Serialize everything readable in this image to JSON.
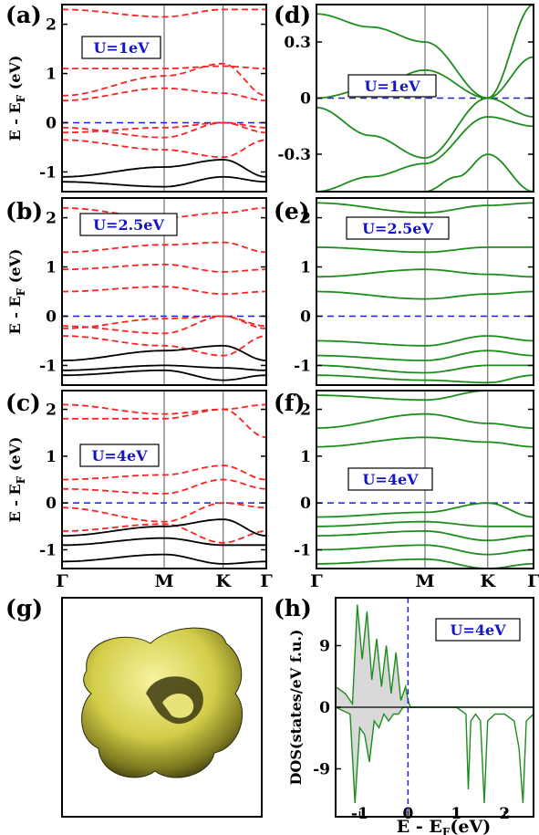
{
  "chart_data": [
    {
      "panel": "(a)",
      "type": "line",
      "U_label": "U=1eV",
      "ylabel": "E - E",
      "ylabel_sub": "F",
      "ylabel_unit": " (eV)",
      "ylim": [
        -1.4,
        2.4
      ],
      "yticks": [
        "-1",
        "0",
        "1",
        "2"
      ],
      "ytick_values": [
        -1,
        0,
        1,
        2
      ],
      "k_points": [
        "Γ",
        "M",
        "K",
        "Γ"
      ],
      "k_positions": [
        0,
        0.5,
        0.789,
        1
      ],
      "series": [
        {
          "style": "dashed",
          "color": "#ff2020",
          "x": [
            0,
            0.5,
            0.789,
            1
          ],
          "y": [
            0.55,
            0.95,
            1.2,
            0.55
          ]
        },
        {
          "style": "dashed",
          "color": "#ff2020",
          "x": [
            0,
            0.5,
            0.789,
            1
          ],
          "y": [
            0.45,
            0.7,
            0.6,
            0.45
          ]
        },
        {
          "style": "dashed",
          "color": "#ff2020",
          "x": [
            0,
            0.5,
            0.789,
            1
          ],
          "y": [
            -0.1,
            -0.3,
            0.0,
            -0.1
          ]
        },
        {
          "style": "dashed",
          "color": "#ff2020",
          "x": [
            0,
            0.5,
            0.789,
            1
          ],
          "y": [
            -0.2,
            -0.1,
            0.0,
            -0.2
          ]
        },
        {
          "style": "dashed",
          "color": "#ff2020",
          "x": [
            0,
            0.5,
            0.789,
            1
          ],
          "y": [
            1.1,
            1.1,
            1.15,
            1.1
          ]
        },
        {
          "style": "dashed",
          "color": "#ff2020",
          "x": [
            0,
            0.5,
            0.789,
            1
          ],
          "y": [
            2.3,
            2.15,
            2.3,
            2.3
          ]
        },
        {
          "style": "dashed",
          "color": "#ff2020",
          "x": [
            0,
            0.5,
            0.789,
            1
          ],
          "y": [
            -0.35,
            -0.55,
            -0.7,
            -0.35
          ]
        },
        {
          "style": "solid",
          "color": "#000000",
          "x": [
            0,
            0.5,
            0.789,
            1
          ],
          "y": [
            -1.1,
            -0.9,
            -0.75,
            -1.1
          ]
        },
        {
          "style": "solid",
          "color": "#000000",
          "x": [
            0,
            0.5,
            0.789,
            1
          ],
          "y": [
            -1.2,
            -1.3,
            -1.1,
            -1.2
          ]
        }
      ]
    },
    {
      "panel": "(b)",
      "type": "line",
      "U_label": "U=2.5eV",
      "ylabel": "E - E",
      "ylabel_sub": "F",
      "ylabel_unit": " (eV)",
      "ylim": [
        -1.4,
        2.4
      ],
      "yticks": [
        "-1",
        "0",
        "1",
        "2"
      ],
      "ytick_values": [
        -1,
        0,
        1,
        2
      ],
      "k_points": [
        "Γ",
        "M",
        "K",
        "Γ"
      ],
      "k_positions": [
        0,
        0.5,
        0.789,
        1
      ],
      "series": [
        {
          "style": "dashed",
          "color": "#ff2020",
          "x": [
            0,
            0.5,
            0.789,
            1
          ],
          "y": [
            2.2,
            2.0,
            2.1,
            2.2
          ]
        },
        {
          "style": "dashed",
          "color": "#ff2020",
          "x": [
            0,
            0.5,
            0.789,
            1
          ],
          "y": [
            1.3,
            1.45,
            1.5,
            1.3
          ]
        },
        {
          "style": "dashed",
          "color": "#ff2020",
          "x": [
            0,
            0.5,
            0.789,
            1
          ],
          "y": [
            0.95,
            1.05,
            0.9,
            0.95
          ]
        },
        {
          "style": "dashed",
          "color": "#ff2020",
          "x": [
            0,
            0.5,
            0.789,
            1
          ],
          "y": [
            0.5,
            0.6,
            0.45,
            0.5
          ]
        },
        {
          "style": "dashed",
          "color": "#ff2020",
          "x": [
            0,
            0.5,
            0.789,
            1
          ],
          "y": [
            -0.2,
            -0.35,
            0.0,
            -0.2
          ]
        },
        {
          "style": "dashed",
          "color": "#ff2020",
          "x": [
            0,
            0.5,
            0.789,
            1
          ],
          "y": [
            -0.25,
            -0.05,
            0.0,
            -0.25
          ]
        },
        {
          "style": "dashed",
          "color": "#ff2020",
          "x": [
            0,
            0.5,
            0.789,
            1
          ],
          "y": [
            -0.4,
            -0.6,
            -0.8,
            -0.4
          ]
        },
        {
          "style": "solid",
          "color": "#000000",
          "x": [
            0,
            0.5,
            0.789,
            1
          ],
          "y": [
            -0.9,
            -0.7,
            -0.6,
            -0.9
          ]
        },
        {
          "style": "solid",
          "color": "#000000",
          "x": [
            0,
            0.5,
            0.789,
            1
          ],
          "y": [
            -1.1,
            -1.0,
            -1.05,
            -1.1
          ]
        },
        {
          "style": "solid",
          "color": "#000000",
          "x": [
            0,
            0.5,
            0.789,
            1
          ],
          "y": [
            -1.2,
            -1.1,
            -1.3,
            -1.2
          ]
        }
      ]
    },
    {
      "panel": "(c)",
      "type": "line",
      "U_label": "U=4eV",
      "ylabel": "E - E",
      "ylabel_sub": "F",
      "ylabel_unit": " (eV)",
      "ylim": [
        -1.4,
        2.4
      ],
      "yticks": [
        "-1",
        "0",
        "1",
        "2"
      ],
      "ytick_values": [
        -1,
        0,
        1,
        2
      ],
      "k_points": [
        "Γ",
        "M",
        "K",
        "Γ"
      ],
      "k_positions": [
        0,
        0.5,
        0.789,
        1
      ],
      "series": [
        {
          "style": "dashed",
          "color": "#ff2020",
          "x": [
            0,
            0.5,
            0.789,
            1
          ],
          "y": [
            2.1,
            1.9,
            2.0,
            2.1
          ]
        },
        {
          "style": "dashed",
          "color": "#ff2020",
          "x": [
            0,
            0.5,
            0.789,
            1
          ],
          "y": [
            1.8,
            1.8,
            2.0,
            1.4
          ]
        },
        {
          "style": "dashed",
          "color": "#ff2020",
          "x": [
            0,
            0.5,
            0.789,
            1
          ],
          "y": [
            0.5,
            0.6,
            0.8,
            0.5
          ]
        },
        {
          "style": "dashed",
          "color": "#ff2020",
          "x": [
            0,
            0.5,
            0.789,
            1
          ],
          "y": [
            0.3,
            0.2,
            0.5,
            0.3
          ]
        },
        {
          "style": "dashed",
          "color": "#ff2020",
          "x": [
            0,
            0.5,
            0.789,
            1
          ],
          "y": [
            -0.1,
            -0.4,
            0.0,
            -0.1
          ]
        },
        {
          "style": "dashed",
          "color": "#ff2020",
          "x": [
            0,
            0.5,
            0.789,
            1
          ],
          "y": [
            -0.6,
            -0.45,
            -0.85,
            -0.6
          ]
        },
        {
          "style": "solid",
          "color": "#000000",
          "x": [
            0,
            0.5,
            0.789,
            1
          ],
          "y": [
            -0.7,
            -0.5,
            -0.35,
            -0.7
          ]
        },
        {
          "style": "solid",
          "color": "#000000",
          "x": [
            0,
            0.5,
            0.789,
            1
          ],
          "y": [
            -0.9,
            -0.75,
            -0.9,
            -0.9
          ]
        },
        {
          "style": "solid",
          "color": "#000000",
          "x": [
            0,
            0.5,
            0.789,
            1
          ],
          "y": [
            -1.25,
            -1.1,
            -1.3,
            -1.25
          ]
        }
      ]
    },
    {
      "panel": "(d)",
      "type": "line",
      "U_label": "U=1eV",
      "ylim": [
        -0.5,
        0.5
      ],
      "yticks": [
        "0.3",
        "0",
        "-0.3"
      ],
      "ytick_values": [
        0.3,
        0,
        -0.3
      ],
      "k_positions": [
        0,
        0.5,
        0.789,
        1
      ],
      "series": [
        {
          "style": "solid",
          "color": "#1e8c1e",
          "x": [
            0,
            0.25,
            0.5,
            0.789,
            1
          ],
          "y": [
            0.45,
            0.38,
            0.3,
            0.0,
            0.5
          ]
        },
        {
          "style": "solid",
          "color": "#1e8c1e",
          "x": [
            0,
            0.25,
            0.5,
            0.789,
            1
          ],
          "y": [
            0.0,
            0.05,
            0.15,
            0.0,
            0.22
          ]
        },
        {
          "style": "solid",
          "color": "#1e8c1e",
          "x": [
            0,
            0.25,
            0.5,
            0.789,
            1
          ],
          "y": [
            -0.05,
            -0.2,
            -0.32,
            0.0,
            -0.1
          ]
        },
        {
          "style": "solid",
          "color": "#1e8c1e",
          "x": [
            0,
            0.25,
            0.5,
            0.789,
            1
          ],
          "y": [
            -0.5,
            -0.42,
            -0.35,
            -0.1,
            -0.15
          ]
        },
        {
          "style": "solid",
          "color": "#1e8c1e",
          "x": [
            0.5,
            0.65,
            0.789,
            1
          ],
          "y": [
            -0.5,
            -0.42,
            -0.3,
            -0.5
          ]
        }
      ]
    },
    {
      "panel": "(e)",
      "type": "line",
      "U_label": "U=2.5eV",
      "ylim": [
        -1.4,
        2.4
      ],
      "yticks": [
        "-1",
        "0",
        "1",
        "2"
      ],
      "ytick_values": [
        -1,
        0,
        1,
        2
      ],
      "k_positions": [
        0,
        0.5,
        0.789,
        1
      ],
      "series": [
        {
          "style": "solid",
          "color": "#1e8c1e",
          "x": [
            0,
            0.5,
            0.789,
            1
          ],
          "y": [
            2.3,
            2.1,
            2.25,
            2.3
          ]
        },
        {
          "style": "solid",
          "color": "#1e8c1e",
          "x": [
            0,
            0.5,
            0.789,
            1
          ],
          "y": [
            1.4,
            1.3,
            1.4,
            1.4
          ]
        },
        {
          "style": "solid",
          "color": "#1e8c1e",
          "x": [
            0,
            0.5,
            0.789,
            1
          ],
          "y": [
            0.8,
            0.95,
            0.85,
            0.8
          ]
        },
        {
          "style": "solid",
          "color": "#1e8c1e",
          "x": [
            0,
            0.5,
            0.789,
            1
          ],
          "y": [
            0.5,
            0.35,
            0.45,
            0.5
          ]
        },
        {
          "style": "solid",
          "color": "#1e8c1e",
          "x": [
            0,
            0.5,
            0.789,
            1
          ],
          "y": [
            -0.5,
            -0.6,
            -0.4,
            -0.5
          ]
        },
        {
          "style": "solid",
          "color": "#1e8c1e",
          "x": [
            0,
            0.5,
            0.789,
            1
          ],
          "y": [
            -0.8,
            -0.9,
            -0.7,
            -0.8
          ]
        },
        {
          "style": "solid",
          "color": "#1e8c1e",
          "x": [
            0,
            0.5,
            0.789,
            1
          ],
          "y": [
            -1.0,
            -1.15,
            -1.0,
            -1.0
          ]
        },
        {
          "style": "solid",
          "color": "#1e8c1e",
          "x": [
            0,
            0.5,
            0.789,
            1
          ],
          "y": [
            -1.2,
            -1.3,
            -1.35,
            -1.2
          ]
        }
      ]
    },
    {
      "panel": "(f)",
      "type": "line",
      "U_label": "U=4eV",
      "ylim": [
        -1.4,
        2.4
      ],
      "yticks": [
        "-1",
        "0",
        "1",
        "2"
      ],
      "ytick_values": [
        -1,
        0,
        1,
        2
      ],
      "k_positions": [
        0,
        0.5,
        0.789,
        1
      ],
      "series": [
        {
          "style": "solid",
          "color": "#1e8c1e",
          "x": [
            0,
            0.5,
            0.789,
            1
          ],
          "y": [
            2.3,
            2.2,
            2.4,
            2.4
          ]
        },
        {
          "style": "solid",
          "color": "#1e8c1e",
          "x": [
            0,
            0.5,
            0.789,
            1
          ],
          "y": [
            1.6,
            1.9,
            1.7,
            1.6
          ]
        },
        {
          "style": "solid",
          "color": "#1e8c1e",
          "x": [
            0,
            0.5,
            0.789,
            1
          ],
          "y": [
            1.2,
            1.4,
            1.3,
            1.2
          ]
        },
        {
          "style": "solid",
          "color": "#1e8c1e",
          "x": [
            0,
            0.5,
            0.789,
            1
          ],
          "y": [
            -0.3,
            -0.2,
            0.0,
            -0.3
          ]
        },
        {
          "style": "solid",
          "color": "#1e8c1e",
          "x": [
            0,
            0.5,
            0.789,
            1
          ],
          "y": [
            -0.5,
            -0.4,
            -0.5,
            -0.5
          ]
        },
        {
          "style": "solid",
          "color": "#1e8c1e",
          "x": [
            0,
            0.5,
            0.789,
            1
          ],
          "y": [
            -0.7,
            -0.6,
            -0.8,
            -0.7
          ]
        },
        {
          "style": "solid",
          "color": "#1e8c1e",
          "x": [
            0,
            0.5,
            0.789,
            1
          ],
          "y": [
            -1.0,
            -0.9,
            -1.1,
            -1.0
          ]
        },
        {
          "style": "solid",
          "color": "#1e8c1e",
          "x": [
            0,
            0.5,
            0.789,
            1
          ],
          "y": [
            -1.3,
            -1.2,
            -1.4,
            -1.3
          ]
        }
      ]
    },
    {
      "panel": "(g)",
      "type": "other",
      "description_visible": "3D isosurface"
    },
    {
      "panel": "(h)",
      "type": "area",
      "U_label": "U=4eV",
      "ylabel": "DOS(states/eV f.u.)",
      "xlabel": "E - E",
      "xlabel_sub": "F",
      "xlabel_unit": "(eV)",
      "xlim": [
        -1.5,
        2.6
      ],
      "ylim": [
        -16,
        16
      ],
      "xticks": [
        "-1",
        "0",
        "1",
        "2"
      ],
      "xtick_values": [
        -1,
        0,
        1,
        2
      ],
      "yticks": [
        "9",
        "0",
        "-9"
      ],
      "ytick_values": [
        9,
        0,
        -9
      ],
      "series": [
        {
          "name_hidden": "total",
          "color": "#1e8c1e",
          "x": [
            -1.5,
            -1.3,
            -1.15,
            -1.05,
            -0.95,
            -0.85,
            -0.75,
            -0.65,
            -0.55,
            -0.45,
            -0.35,
            -0.25,
            -0.15,
            -0.05,
            0.0,
            0.05,
            1.0,
            1.1,
            1.2,
            1.3,
            1.45,
            1.55,
            1.6,
            1.7,
            1.8,
            2.0,
            2.2,
            2.35,
            2.45,
            2.6
          ],
          "y": [
            3,
            2,
            0.5,
            15,
            7,
            14,
            4,
            10,
            3,
            9,
            2,
            8,
            1,
            3,
            1,
            0,
            0,
            0,
            0,
            0,
            0,
            0,
            0,
            0,
            0,
            0,
            0,
            0,
            0,
            0
          ]
        },
        {
          "name_hidden": "down",
          "color": "#1e8c1e",
          "x": [
            -1.5,
            -1.2,
            -1.1,
            -1.0,
            -0.9,
            -0.8,
            -0.7,
            -0.6,
            -0.5,
            -0.4,
            -0.3,
            -0.2,
            -0.1,
            0.0,
            1.0,
            1.2,
            1.25,
            1.3,
            1.4,
            1.5,
            1.58,
            1.65,
            1.8,
            2.0,
            2.2,
            2.3,
            2.38,
            2.45,
            2.6
          ],
          "y": [
            0,
            -1,
            -14,
            -3,
            -4,
            -8,
            -2,
            -3,
            -1,
            -2,
            -1,
            -1,
            0,
            0,
            0,
            -1,
            -12,
            -2,
            -1,
            -2,
            -14,
            -2,
            -1,
            -1,
            -2,
            -6,
            -14,
            -2,
            -1
          ]
        }
      ]
    }
  ]
}
